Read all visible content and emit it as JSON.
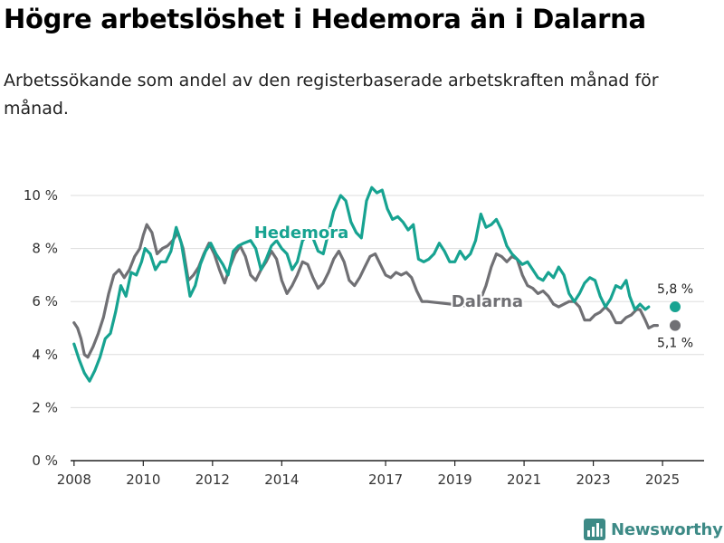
{
  "title": "Högre arbetslöshet i Hedemora än i Dalarna",
  "subtitle": "Arbetssökande som andel av den registerbaserade arbetskraften månad för månad.",
  "brand": {
    "name": "Newsworthy"
  },
  "colors": {
    "hedemora": "#17a391",
    "dalarna": "#707074",
    "grid": "#dddddd",
    "axis": "#222222"
  },
  "chart_data": {
    "type": "line",
    "title": "Högre arbetslöshet i Hedemora än i Dalarna",
    "xlabel": "",
    "ylabel": "",
    "xlim": [
      2007.9,
      2026.2
    ],
    "ylim": [
      0,
      10
    ],
    "yticks": [
      0,
      2,
      4,
      6,
      8,
      10
    ],
    "ytick_labels": [
      "0 %",
      "2 %",
      "4 %",
      "6 %",
      "8 %",
      "10 %"
    ],
    "xticks": [
      2008,
      2010,
      2012,
      2014,
      2017,
      2019,
      2021,
      2023,
      2025
    ],
    "xtick_labels": [
      "2008",
      "2010",
      "2012",
      "2014",
      "2017",
      "2019",
      "2021",
      "2023",
      "2025"
    ],
    "grid": true,
    "legend": "inline labels",
    "series": [
      {
        "name": "Hedemora",
        "label_x": 2013.2,
        "label_y": 8.6,
        "end_label": "5,8 %",
        "points": [
          [
            2008.0,
            4.4
          ],
          [
            2008.15,
            3.8
          ],
          [
            2008.3,
            3.3
          ],
          [
            2008.45,
            3.0
          ],
          [
            2008.6,
            3.4
          ],
          [
            2008.75,
            3.9
          ],
          [
            2008.9,
            4.6
          ],
          [
            2009.05,
            4.8
          ],
          [
            2009.2,
            5.6
          ],
          [
            2009.35,
            6.6
          ],
          [
            2009.5,
            6.2
          ],
          [
            2009.65,
            7.1
          ],
          [
            2009.8,
            7.0
          ],
          [
            2009.95,
            7.5
          ],
          [
            2010.05,
            8.0
          ],
          [
            2010.2,
            7.8
          ],
          [
            2010.35,
            7.2
          ],
          [
            2010.5,
            7.5
          ],
          [
            2010.65,
            7.5
          ],
          [
            2010.8,
            7.9
          ],
          [
            2010.95,
            8.8
          ],
          [
            2011.1,
            8.2
          ],
          [
            2011.25,
            7.0
          ],
          [
            2011.35,
            6.2
          ],
          [
            2011.5,
            6.6
          ],
          [
            2011.65,
            7.4
          ],
          [
            2011.8,
            7.9
          ],
          [
            2011.95,
            8.2
          ],
          [
            2012.1,
            7.8
          ],
          [
            2012.3,
            7.4
          ],
          [
            2012.45,
            7.0
          ],
          [
            2012.6,
            7.9
          ],
          [
            2012.75,
            8.1
          ],
          [
            2012.9,
            8.2
          ],
          [
            2013.1,
            8.3
          ],
          [
            2013.25,
            8.0
          ],
          [
            2013.4,
            7.2
          ],
          [
            2013.55,
            7.6
          ],
          [
            2013.7,
            8.1
          ],
          [
            2013.85,
            8.3
          ],
          [
            2014.0,
            8.0
          ],
          [
            2014.15,
            7.8
          ],
          [
            2014.3,
            7.2
          ],
          [
            2014.45,
            7.5
          ],
          [
            2014.6,
            8.3
          ],
          [
            2014.75,
            8.5
          ],
          [
            2014.9,
            8.4
          ],
          [
            2015.05,
            7.9
          ],
          [
            2015.2,
            7.8
          ],
          [
            2015.35,
            8.6
          ],
          [
            2015.5,
            9.4
          ],
          [
            2015.7,
            10.0
          ],
          [
            2015.85,
            9.8
          ],
          [
            2016.0,
            9.0
          ],
          [
            2016.15,
            8.6
          ],
          [
            2016.3,
            8.4
          ],
          [
            2016.45,
            9.8
          ],
          [
            2016.6,
            10.3
          ],
          [
            2016.75,
            10.1
          ],
          [
            2016.9,
            10.2
          ],
          [
            2017.05,
            9.5
          ],
          [
            2017.2,
            9.1
          ],
          [
            2017.35,
            9.2
          ],
          [
            2017.5,
            9.0
          ],
          [
            2017.65,
            8.7
          ],
          [
            2017.8,
            8.9
          ],
          [
            2017.95,
            7.6
          ],
          [
            2018.1,
            7.5
          ],
          [
            2018.25,
            7.6
          ],
          [
            2018.4,
            7.8
          ],
          [
            2018.55,
            8.2
          ],
          [
            2018.7,
            7.9
          ],
          [
            2018.85,
            7.5
          ],
          [
            2019.0,
            7.5
          ],
          [
            2019.15,
            7.9
          ],
          [
            2019.3,
            7.6
          ],
          [
            2019.45,
            7.8
          ],
          [
            2019.6,
            8.3
          ],
          [
            2019.75,
            9.3
          ],
          [
            2019.9,
            8.8
          ],
          [
            2020.05,
            8.9
          ],
          [
            2020.2,
            9.1
          ],
          [
            2020.35,
            8.7
          ],
          [
            2020.5,
            8.1
          ],
          [
            2020.65,
            7.8
          ],
          [
            2020.8,
            7.6
          ],
          [
            2020.95,
            7.4
          ],
          [
            2021.1,
            7.5
          ],
          [
            2021.25,
            7.2
          ],
          [
            2021.4,
            6.9
          ],
          [
            2021.55,
            6.8
          ],
          [
            2021.7,
            7.1
          ],
          [
            2021.85,
            6.9
          ],
          [
            2022.0,
            7.3
          ],
          [
            2022.15,
            7.0
          ],
          [
            2022.3,
            6.3
          ],
          [
            2022.45,
            6.0
          ],
          [
            2022.6,
            6.3
          ],
          [
            2022.75,
            6.7
          ],
          [
            2022.9,
            6.9
          ],
          [
            2023.05,
            6.8
          ],
          [
            2023.2,
            6.2
          ],
          [
            2023.35,
            5.8
          ],
          [
            2023.5,
            6.1
          ],
          [
            2023.65,
            6.6
          ],
          [
            2023.8,
            6.5
          ],
          [
            2023.95,
            6.8
          ],
          [
            2024.05,
            6.2
          ],
          [
            2024.2,
            5.7
          ],
          [
            2024.35,
            5.9
          ],
          [
            2024.5,
            5.7
          ],
          [
            2024.6,
            5.8
          ]
        ]
      },
      {
        "name": "Dalarna",
        "label_x": 2018.9,
        "label_y": 6.0,
        "end_label": "5,1 %",
        "points": [
          [
            2008.0,
            5.2
          ],
          [
            2008.1,
            5.0
          ],
          [
            2008.2,
            4.6
          ],
          [
            2008.3,
            4.0
          ],
          [
            2008.4,
            3.9
          ],
          [
            2008.55,
            4.3
          ],
          [
            2008.7,
            4.8
          ],
          [
            2008.85,
            5.4
          ],
          [
            2009.0,
            6.3
          ],
          [
            2009.15,
            7.0
          ],
          [
            2009.3,
            7.2
          ],
          [
            2009.45,
            6.9
          ],
          [
            2009.6,
            7.2
          ],
          [
            2009.75,
            7.7
          ],
          [
            2009.9,
            8.0
          ],
          [
            2010.0,
            8.5
          ],
          [
            2010.1,
            8.9
          ],
          [
            2010.25,
            8.6
          ],
          [
            2010.4,
            7.8
          ],
          [
            2010.55,
            8.0
          ],
          [
            2010.7,
            8.1
          ],
          [
            2010.85,
            8.3
          ],
          [
            2011.0,
            8.6
          ],
          [
            2011.15,
            8.0
          ],
          [
            2011.3,
            6.8
          ],
          [
            2011.45,
            7.0
          ],
          [
            2011.6,
            7.3
          ],
          [
            2011.75,
            7.8
          ],
          [
            2011.9,
            8.2
          ],
          [
            2012.05,
            7.8
          ],
          [
            2012.2,
            7.2
          ],
          [
            2012.35,
            6.7
          ],
          [
            2012.5,
            7.3
          ],
          [
            2012.65,
            7.8
          ],
          [
            2012.8,
            8.1
          ],
          [
            2012.95,
            7.7
          ],
          [
            2013.1,
            7.0
          ],
          [
            2013.25,
            6.8
          ],
          [
            2013.4,
            7.2
          ],
          [
            2013.55,
            7.5
          ],
          [
            2013.7,
            7.9
          ],
          [
            2013.85,
            7.6
          ],
          [
            2014.0,
            6.8
          ],
          [
            2014.15,
            6.3
          ],
          [
            2014.3,
            6.6
          ],
          [
            2014.45,
            7.0
          ],
          [
            2014.6,
            7.5
          ],
          [
            2014.75,
            7.4
          ],
          [
            2014.9,
            6.9
          ],
          [
            2015.05,
            6.5
          ],
          [
            2015.2,
            6.7
          ],
          [
            2015.35,
            7.1
          ],
          [
            2015.5,
            7.6
          ],
          [
            2015.65,
            7.9
          ],
          [
            2015.8,
            7.5
          ],
          [
            2015.95,
            6.8
          ],
          [
            2016.1,
            6.6
          ],
          [
            2016.25,
            6.9
          ],
          [
            2016.4,
            7.3
          ],
          [
            2016.55,
            7.7
          ],
          [
            2016.7,
            7.8
          ],
          [
            2016.85,
            7.4
          ],
          [
            2017.0,
            7.0
          ],
          [
            2017.15,
            6.9
          ],
          [
            2017.3,
            7.1
          ],
          [
            2017.45,
            7.0
          ],
          [
            2017.6,
            7.1
          ],
          [
            2017.75,
            6.9
          ],
          [
            2017.9,
            6.4
          ],
          [
            2018.05,
            6.0
          ],
          [
            2018.2,
            6.0
          ],
          [
            2019.6,
            5.8
          ],
          [
            2019.75,
            6.1
          ],
          [
            2019.9,
            6.6
          ],
          [
            2020.05,
            7.3
          ],
          [
            2020.2,
            7.8
          ],
          [
            2020.35,
            7.7
          ],
          [
            2020.5,
            7.5
          ],
          [
            2020.65,
            7.7
          ],
          [
            2020.8,
            7.6
          ],
          [
            2020.95,
            7.0
          ],
          [
            2021.1,
            6.6
          ],
          [
            2021.25,
            6.5
          ],
          [
            2021.4,
            6.3
          ],
          [
            2021.55,
            6.4
          ],
          [
            2021.7,
            6.2
          ],
          [
            2021.85,
            5.9
          ],
          [
            2022.0,
            5.8
          ],
          [
            2022.15,
            5.9
          ],
          [
            2022.3,
            6.0
          ],
          [
            2022.45,
            6.0
          ],
          [
            2022.6,
            5.8
          ],
          [
            2022.75,
            5.3
          ],
          [
            2022.9,
            5.3
          ],
          [
            2023.05,
            5.5
          ],
          [
            2023.2,
            5.6
          ],
          [
            2023.35,
            5.8
          ],
          [
            2023.5,
            5.6
          ],
          [
            2023.65,
            5.2
          ],
          [
            2023.8,
            5.2
          ],
          [
            2023.95,
            5.4
          ],
          [
            2024.1,
            5.5
          ],
          [
            2024.25,
            5.7
          ],
          [
            2024.35,
            5.7
          ],
          [
            2024.5,
            5.3
          ],
          [
            2024.6,
            5.0
          ],
          [
            2024.75,
            5.1
          ],
          [
            2024.85,
            5.1
          ]
        ]
      }
    ]
  }
}
